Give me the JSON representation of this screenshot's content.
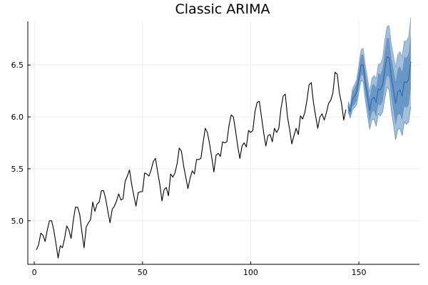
{
  "chart_data": {
    "type": "line",
    "title": "Classic ARIMA",
    "xlabel": "",
    "ylabel": "",
    "xlim": [
      -3,
      178
    ],
    "ylim": [
      4.58,
      6.92
    ],
    "grid": true,
    "legend": "none",
    "x_ticks": [
      0,
      50,
      100,
      150
    ],
    "x_tick_labels": [
      "0",
      "50",
      "100",
      "150"
    ],
    "y_ticks": [
      5.0,
      5.5,
      6.0,
      6.5
    ],
    "y_tick_labels": [
      "5.0",
      "5.5",
      "6.0",
      "6.5"
    ],
    "colors": {
      "history": "#000000",
      "forecast": "#2f6bb0",
      "band_outer": "#9dbdd9",
      "band_inner": "#5f8fc2",
      "grid": "#ededed",
      "axis": "#000000"
    },
    "history": {
      "x_start": 1,
      "values": [
        4.72,
        4.77,
        4.88,
        4.86,
        4.8,
        4.91,
        5.0,
        5.0,
        4.91,
        4.78,
        4.64,
        4.76,
        4.74,
        4.83,
        4.95,
        4.91,
        4.83,
        5.0,
        5.13,
        5.13,
        5.06,
        4.89,
        4.74,
        4.94,
        4.98,
        5.01,
        5.18,
        5.09,
        5.16,
        5.18,
        5.29,
        5.29,
        5.21,
        5.09,
        4.98,
        5.11,
        5.14,
        5.19,
        5.26,
        5.2,
        5.21,
        5.38,
        5.43,
        5.49,
        5.35,
        5.24,
        5.14,
        5.27,
        5.28,
        5.28,
        5.46,
        5.45,
        5.43,
        5.49,
        5.57,
        5.6,
        5.47,
        5.35,
        5.19,
        5.3,
        5.32,
        5.24,
        5.45,
        5.42,
        5.46,
        5.55,
        5.7,
        5.67,
        5.53,
        5.42,
        5.31,
        5.41,
        5.48,
        5.45,
        5.59,
        5.59,
        5.6,
        5.75,
        5.89,
        5.85,
        5.74,
        5.61,
        5.47,
        5.63,
        5.65,
        5.62,
        5.76,
        5.75,
        5.76,
        5.92,
        6.02,
        6.0,
        5.87,
        5.72,
        5.6,
        5.72,
        5.75,
        5.71,
        5.87,
        5.85,
        5.87,
        6.05,
        6.14,
        6.15,
        6.0,
        5.85,
        5.72,
        5.82,
        5.83,
        5.76,
        5.89,
        5.85,
        5.89,
        6.08,
        6.2,
        6.22,
        6.0,
        5.88,
        5.74,
        5.82,
        5.89,
        5.83,
        6.01,
        5.98,
        6.04,
        6.16,
        6.31,
        6.33,
        6.14,
        6.01,
        5.89,
        6.0,
        6.03,
        5.97,
        6.04,
        6.13,
        6.16,
        6.23,
        6.43,
        6.41,
        6.23,
        6.13,
        5.97,
        6.07
      ]
    },
    "forecast": {
      "x_start": 145,
      "mean": [
        6.1,
        6.05,
        6.17,
        6.2,
        6.24,
        6.37,
        6.5,
        6.5,
        6.33,
        6.2,
        6.06,
        6.17,
        6.19,
        6.14,
        6.27,
        6.26,
        6.31,
        6.46,
        6.58,
        6.57,
        6.38,
        6.26,
        6.13,
        6.24,
        6.26,
        6.2,
        6.34,
        6.33,
        6.36,
        6.53
      ],
      "inner_lo": [
        6.06,
        6.01,
        6.1,
        6.12,
        6.16,
        6.29,
        6.4,
        6.4,
        6.22,
        6.09,
        5.95,
        6.04,
        6.06,
        6.0,
        6.12,
        6.11,
        6.15,
        6.29,
        6.4,
        6.38,
        6.19,
        6.06,
        5.92,
        6.02,
        6.03,
        5.97,
        6.1,
        6.09,
        6.11,
        6.27
      ],
      "inner_hi": [
        6.14,
        6.09,
        6.24,
        6.28,
        6.33,
        6.46,
        6.6,
        6.6,
        6.44,
        6.32,
        6.18,
        6.3,
        6.32,
        6.28,
        6.42,
        6.41,
        6.47,
        6.63,
        6.76,
        6.76,
        6.57,
        6.46,
        6.34,
        6.46,
        6.49,
        6.43,
        6.58,
        6.57,
        6.61,
        6.79
      ],
      "outer_lo": [
        6.05,
        5.99,
        6.07,
        6.09,
        6.12,
        6.24,
        6.35,
        6.34,
        6.16,
        6.02,
        5.88,
        5.97,
        5.98,
        5.91,
        6.03,
        6.01,
        6.05,
        6.18,
        6.29,
        6.26,
        6.06,
        5.93,
        5.78,
        5.88,
        5.89,
        5.82,
        5.95,
        5.93,
        5.95,
        6.1
      ],
      "outer_hi": [
        6.15,
        6.11,
        6.27,
        6.31,
        6.36,
        6.5,
        6.65,
        6.66,
        6.5,
        6.38,
        6.24,
        6.37,
        6.4,
        6.37,
        6.51,
        6.51,
        6.57,
        6.74,
        6.87,
        6.88,
        6.7,
        6.59,
        6.48,
        6.6,
        6.63,
        6.58,
        6.73,
        6.73,
        6.77,
        6.96
      ]
    }
  }
}
